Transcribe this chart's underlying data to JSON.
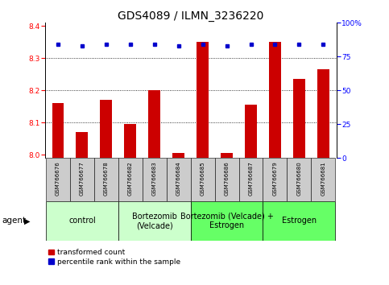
{
  "title": "GDS4089 / ILMN_3236220",
  "samples": [
    "GSM766676",
    "GSM766677",
    "GSM766678",
    "GSM766682",
    "GSM766683",
    "GSM766684",
    "GSM766685",
    "GSM766686",
    "GSM766687",
    "GSM766679",
    "GSM766680",
    "GSM766681"
  ],
  "red_values": [
    8.16,
    8.07,
    8.17,
    8.095,
    8.2,
    8.005,
    8.35,
    8.005,
    8.155,
    8.35,
    8.235,
    8.265
  ],
  "blue_values": [
    84,
    83,
    84,
    84,
    84,
    83,
    84,
    83,
    84,
    84,
    84,
    84
  ],
  "ylim_left": [
    7.99,
    8.41
  ],
  "ylim_right": [
    0,
    100
  ],
  "yticks_left": [
    8.0,
    8.1,
    8.2,
    8.3,
    8.4
  ],
  "yticks_right": [
    0,
    25,
    50,
    75,
    100
  ],
  "groups": [
    {
      "label": "control",
      "start": 0,
      "end": 3,
      "color": "#ccffcc"
    },
    {
      "label": "Bortezomib\n(Velcade)",
      "start": 3,
      "end": 6,
      "color": "#ccffcc"
    },
    {
      "label": "Bortezomib (Velcade) +\nEstrogen",
      "start": 6,
      "end": 9,
      "color": "#66ff66"
    },
    {
      "label": "Estrogen",
      "start": 9,
      "end": 12,
      "color": "#66ff66"
    }
  ],
  "bar_color": "#cc0000",
  "dot_color": "#0000cc",
  "bar_width": 0.5,
  "title_fontsize": 10,
  "tick_fontsize": 6.5,
  "group_label_fontsize": 7.5,
  "agent_label": "agent",
  "legend_red": "transformed count",
  "legend_blue": "percentile rank within the sample",
  "background_color": "#ffffff",
  "plot_bg_color": "#ffffff",
  "xtick_bg_color": "#cccccc",
  "grid_lines": [
    8.1,
    8.2,
    8.3
  ]
}
